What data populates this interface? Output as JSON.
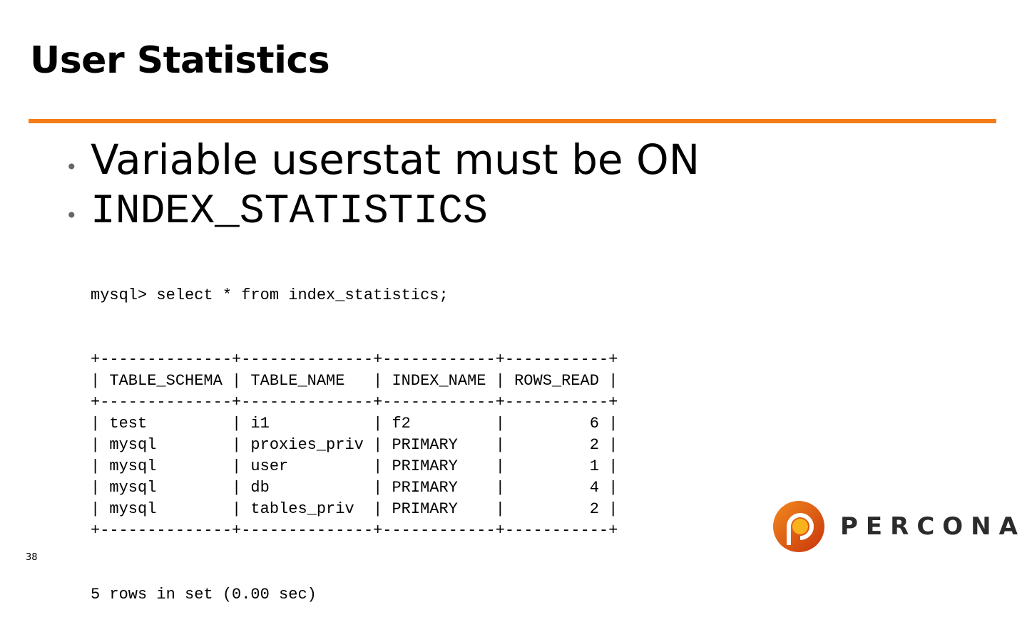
{
  "title": "User Statistics",
  "accent_color": "#f57c18",
  "bullets": [
    {
      "icon": "bullet-dot",
      "text": "Variable userstat must be ON"
    },
    {
      "icon": "bullet-dot",
      "text": "INDEX_STATISTICS"
    }
  ],
  "query": {
    "command": "mysql> select * from index_statistics;",
    "columns": [
      "TABLE_SCHEMA",
      "TABLE_NAME",
      "INDEX_NAME",
      "ROWS_READ"
    ],
    "rows": [
      [
        "test",
        "i1",
        "f2",
        "6"
      ],
      [
        "mysql",
        "proxies_priv",
        "PRIMARY",
        "2"
      ],
      [
        "mysql",
        "user",
        "PRIMARY",
        "1"
      ],
      [
        "mysql",
        "db",
        "PRIMARY",
        "4"
      ],
      [
        "mysql",
        "tables_priv",
        "PRIMARY",
        "2"
      ]
    ],
    "footer": "5 rows in set (0.00 sec)"
  },
  "page_number": "38",
  "logo": {
    "text": "PERCONA",
    "icon": "percona-logo"
  }
}
